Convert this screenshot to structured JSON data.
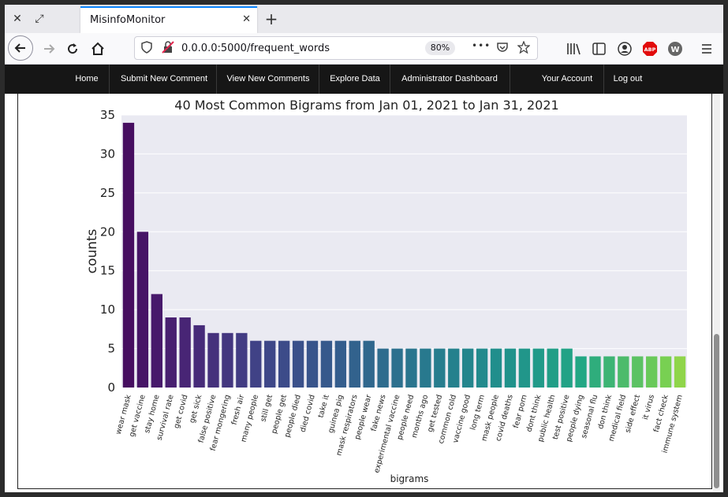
{
  "browser": {
    "tab_title": "MisinfoMonitor",
    "tab_close": "✕",
    "new_tab": "+",
    "url": "0.0.0.0:5000/frequent_words",
    "zoom": "80%",
    "menu_dots": "•••"
  },
  "site_nav": {
    "items": [
      "Home",
      "Submit New Comment",
      "View New Comments",
      "Explore Data",
      "Administrator Dashboard",
      "Your Account",
      "Log out"
    ]
  },
  "chart_data": {
    "type": "bar",
    "title": "40 Most Common Bigrams from Jan 01, 2021 to Jan 31, 2021",
    "xlabel": "bigrams",
    "ylabel": "counts",
    "ylim": [
      0,
      35
    ],
    "yticks": [
      0,
      5,
      10,
      15,
      20,
      25,
      30,
      35
    ],
    "grid": true,
    "categories": [
      "wear mask",
      "get vaccine",
      "stay home",
      "survival rate",
      "get covid",
      "get sick",
      "false positive",
      "fear mongering",
      "fresh air",
      "many people",
      "still get",
      "people get",
      "people died",
      "died covid",
      "take it",
      "guinea pig",
      "mask respirators",
      "people wear",
      "fake news",
      "experimental vaccine",
      "people need",
      "months ago",
      "get tested",
      "common cold",
      "vaccine good",
      "long term",
      "mask people",
      "covid deaths",
      "fear porn",
      "dont think",
      "public health",
      "test positive",
      "people dying",
      "seasonal flu",
      "don think",
      "medical field",
      "side effect",
      "it virus",
      "fact check",
      "immune system"
    ],
    "values": [
      34,
      20,
      12,
      9,
      9,
      8,
      7,
      7,
      7,
      6,
      6,
      6,
      6,
      6,
      6,
      6,
      6,
      6,
      5,
      5,
      5,
      5,
      5,
      5,
      5,
      5,
      5,
      5,
      5,
      5,
      5,
      5,
      4,
      4,
      4,
      4,
      4,
      4,
      4,
      4
    ],
    "colormap": "viridis",
    "plot_background": "#eaeaf2"
  }
}
